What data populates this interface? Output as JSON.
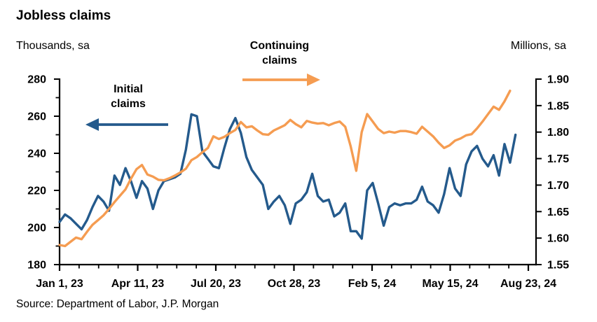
{
  "title": "Jobless claims",
  "source": "Source: Department of Labor, J.P. Morgan",
  "left_axis": {
    "unit_label": "Thousands, sa",
    "tick_labels": [
      280,
      260,
      240,
      220,
      200,
      180
    ],
    "min": 180,
    "max": 280,
    "minor_step": 10
  },
  "right_axis": {
    "unit_label": "Millions, sa",
    "tick_labels": [
      "1.90",
      "1.85",
      "1.80",
      "1.75",
      "1.70",
      "1.65",
      "1.60",
      "1.55"
    ],
    "min": 1.55,
    "max": 1.9
  },
  "x_axis": {
    "tick_labels": [
      "Jan 1, 23",
      "Apr 11, 23",
      "Jul 20, 23",
      "Oct 28, 23",
      "Feb 5, 24",
      "May 15, 24",
      "Aug 23, 24"
    ]
  },
  "annotations": {
    "initial": {
      "line1": "Initial",
      "line2": "claims"
    },
    "continuing": {
      "line1": "Continuing",
      "line2": "claims"
    }
  },
  "colors": {
    "initial_claims": "#245A8C",
    "continuing_claims": "#F59C51",
    "axis": "#000000"
  },
  "chart_data": {
    "type": "line",
    "frequency": "weekly",
    "x_range_labels": [
      "Jan 1, 23",
      "Aug 23, 24"
    ],
    "x_tick_labels": [
      "Jan 1, 23",
      "Apr 11, 23",
      "Jul 20, 23",
      "Oct 28, 23",
      "Feb 5, 24",
      "May 15, 24",
      "Aug 23, 24"
    ],
    "left_ylim": [
      180,
      280
    ],
    "right_ylim": [
      1.55,
      1.9
    ],
    "grid": false,
    "series": [
      {
        "name": "Initial claims",
        "axis": "left",
        "unit": "thousands, sa",
        "color": "#245A8C",
        "values": [
          203,
          207,
          205,
          202,
          199,
          204,
          211,
          217,
          214,
          209,
          228,
          223,
          232,
          225,
          216,
          225,
          221,
          210,
          220,
          225,
          226,
          227,
          229,
          242,
          261,
          260,
          241,
          237,
          233,
          232,
          243,
          253,
          259,
          251,
          238,
          231,
          227,
          223,
          210,
          214,
          217,
          212,
          202,
          213,
          215,
          219,
          229,
          217,
          214,
          215,
          206,
          208,
          213,
          198,
          198,
          194,
          220,
          224,
          213,
          201,
          211,
          213,
          212,
          213,
          213,
          215,
          222,
          214,
          212,
          208,
          218,
          232,
          221,
          217,
          234,
          241,
          244,
          237,
          233,
          239,
          228,
          245,
          235,
          250
        ]
      },
      {
        "name": "Continuing claims",
        "axis": "right",
        "unit": "millions, sa",
        "color": "#F59C51",
        "values": [
          1.587,
          1.585,
          1.593,
          1.601,
          1.598,
          1.612,
          1.625,
          1.634,
          1.643,
          1.655,
          1.668,
          1.68,
          1.692,
          1.712,
          1.73,
          1.738,
          1.72,
          1.716,
          1.71,
          1.709,
          1.713,
          1.718,
          1.724,
          1.731,
          1.747,
          1.753,
          1.762,
          1.77,
          1.792,
          1.787,
          1.791,
          1.798,
          1.804,
          1.819,
          1.809,
          1.811,
          1.803,
          1.796,
          1.795,
          1.803,
          1.808,
          1.813,
          1.823,
          1.815,
          1.809,
          1.821,
          1.818,
          1.816,
          1.817,
          1.813,
          1.817,
          1.82,
          1.81,
          1.773,
          1.727,
          1.8,
          1.834,
          1.82,
          1.806,
          1.798,
          1.801,
          1.799,
          1.802,
          1.802,
          1.8,
          1.797,
          1.81,
          1.801,
          1.792,
          1.78,
          1.77,
          1.775,
          1.784,
          1.788,
          1.794,
          1.796,
          1.807,
          1.82,
          1.834,
          1.848,
          1.842,
          1.858,
          1.878
        ]
      }
    ]
  }
}
